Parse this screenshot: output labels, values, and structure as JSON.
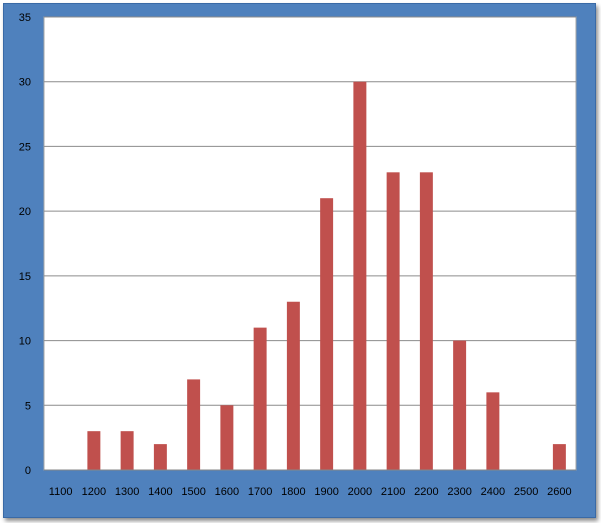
{
  "chart_data": {
    "type": "bar",
    "title": "",
    "xlabel": "",
    "ylabel": "",
    "categories": [
      "1100",
      "1200",
      "1300",
      "1400",
      "1500",
      "1600",
      "1700",
      "1800",
      "1900",
      "2000",
      "2100",
      "2200",
      "2300",
      "2400",
      "2500",
      "2600"
    ],
    "values": [
      0,
      3,
      3,
      2,
      7,
      5,
      11,
      13,
      21,
      30,
      23,
      23,
      10,
      6,
      0,
      2
    ],
    "ylim": [
      0,
      35
    ],
    "yticks": [
      "0",
      "5",
      "10",
      "15",
      "20",
      "25",
      "30",
      "35"
    ],
    "grid": true,
    "legend": "none",
    "colors": {
      "bar": "#c0504d",
      "frame": "#4f81bd",
      "plot_bg": "#ffffff",
      "grid": "#8c8c8c"
    }
  }
}
